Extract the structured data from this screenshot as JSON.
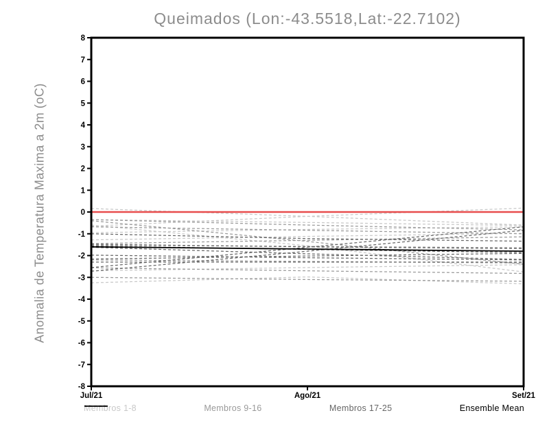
{
  "chart_data": {
    "type": "line",
    "title": "Queimados (Lon:-43.5518,Lat:-22.7102)",
    "xlabel": "",
    "ylabel": "Anomalia de Temperatura Maxima a 2m (oC)",
    "x": [
      "Jul/21",
      "Ago/21",
      "Set/21"
    ],
    "ylim": [
      -8,
      8
    ],
    "y_ticks": [
      8,
      7,
      6,
      5,
      4,
      3,
      2,
      1,
      0,
      -1,
      -2,
      -3,
      -4,
      -5,
      -6,
      -7,
      -8
    ],
    "grid": false,
    "legend_position": "bottom",
    "colors": {
      "zero_line": "#e84c4c",
      "members_1_8": "#c8c8c8",
      "members_9_16": "#999999",
      "members_17_25": "#666666",
      "ensemble_mean": "#000000",
      "frame": "#000000",
      "title_text": "#8c8c8c"
    },
    "reference_line": {
      "label": "zero-anomaly",
      "y": 0,
      "color": "#e84c4c",
      "style": "solid"
    },
    "groups": [
      {
        "name": "Membros 1-8",
        "color": "#c8c8c8",
        "style": "dashed",
        "members": [
          [
            0.16,
            -0.2,
            -0.6
          ],
          [
            -0.65,
            -0.2,
            0.18
          ],
          [
            -0.35,
            -0.48,
            -0.62
          ],
          [
            -0.95,
            -0.8,
            -0.68
          ],
          [
            -1.28,
            -1.12,
            -0.98
          ],
          [
            -0.6,
            -1.55,
            -2.75
          ],
          [
            -2.7,
            -2.55,
            -2.42
          ],
          [
            -3.25,
            -2.98,
            -3.3
          ]
        ]
      },
      {
        "name": "Membros 9-16",
        "color": "#999999",
        "style": "dashed",
        "members": [
          [
            -0.35,
            -0.6,
            -0.82
          ],
          [
            -0.68,
            -0.84,
            -1.0
          ],
          [
            -1.45,
            -1.3,
            -1.14
          ],
          [
            -1.52,
            -1.58,
            -1.64
          ],
          [
            -0.4,
            -1.35,
            -2.4
          ],
          [
            -2.2,
            -2.27,
            -2.34
          ],
          [
            -2.56,
            -2.7,
            -2.82
          ],
          [
            -3.0,
            -3.1,
            -3.18
          ]
        ]
      },
      {
        "name": "Membros 17-25",
        "color": "#666666",
        "style": "dashed",
        "members": [
          [
            -1.0,
            -1.22,
            -1.34
          ],
          [
            -1.48,
            -1.6,
            -1.68
          ],
          [
            -1.56,
            -1.72,
            -1.86
          ],
          [
            -1.62,
            -1.92,
            -2.18
          ],
          [
            -1.98,
            -2.1,
            -2.2
          ],
          [
            -2.16,
            -2.02,
            -1.9
          ],
          [
            -2.3,
            -2.3,
            -2.3
          ],
          [
            -2.55,
            -1.62,
            -0.68
          ],
          [
            -2.72,
            -1.8,
            -0.84
          ]
        ]
      }
    ],
    "ensemble_mean": {
      "name": "Ensemble Mean",
      "color": "#000000",
      "style": "solid",
      "values": [
        -1.6,
        -1.7,
        -1.8
      ]
    }
  }
}
